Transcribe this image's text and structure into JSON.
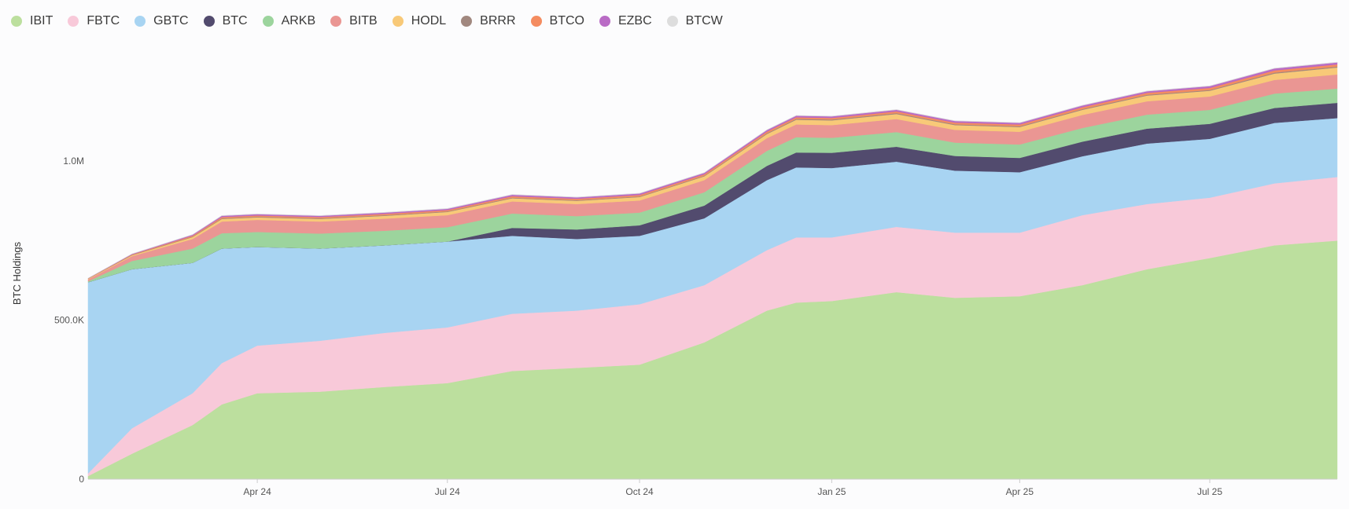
{
  "chart_data": {
    "type": "area",
    "stacked": true,
    "title": "",
    "xlabel": "",
    "ylabel": "BTC Holdings",
    "ylim": [
      0,
      1300000
    ],
    "y_ticks": [
      {
        "value": 0,
        "label": "0"
      },
      {
        "value": 500000,
        "label": "500.0K"
      },
      {
        "value": 1000000,
        "label": "1.0M"
      }
    ],
    "x_ticks": [
      {
        "date": "2024-04-01",
        "label": "Apr 24"
      },
      {
        "date": "2024-07-01",
        "label": "Jul 24"
      },
      {
        "date": "2024-10-01",
        "label": "Oct 24"
      },
      {
        "date": "2025-01-01",
        "label": "Jan 25"
      },
      {
        "date": "2025-04-01",
        "label": "Apr 25"
      },
      {
        "date": "2025-07-01",
        "label": "Jul 25"
      }
    ],
    "x": [
      "2024-01-11",
      "2024-02-01",
      "2024-03-01",
      "2024-03-15",
      "2024-04-01",
      "2024-05-01",
      "2024-06-01",
      "2024-07-01",
      "2024-08-01",
      "2024-09-01",
      "2024-10-01",
      "2024-11-01",
      "2024-12-01",
      "2024-12-15",
      "2025-01-01",
      "2025-02-01",
      "2025-03-01",
      "2025-04-01",
      "2025-05-01",
      "2025-06-01",
      "2025-07-01",
      "2025-08-01",
      "2025-08-31"
    ],
    "legend_position": "top-left",
    "series": [
      {
        "name": "IBIT",
        "color": "#bcdf9e",
        "values": [
          10000,
          80000,
          170000,
          235000,
          270000,
          275000,
          290000,
          302000,
          340000,
          350000,
          360000,
          430000,
          530000,
          555000,
          560000,
          588000,
          570000,
          575000,
          610000,
          660000,
          695000,
          735000,
          750000
        ]
      },
      {
        "name": "FBTC",
        "color": "#f8c9d9",
        "values": [
          8000,
          80000,
          100000,
          130000,
          150000,
          160000,
          170000,
          175000,
          180000,
          180000,
          190000,
          180000,
          190000,
          205000,
          200000,
          205000,
          205000,
          200000,
          220000,
          205000,
          190000,
          195000,
          200000
        ]
      },
      {
        "name": "GBTC",
        "color": "#a8d4f2",
        "values": [
          601000,
          500000,
          410000,
          360000,
          310000,
          290000,
          275000,
          270000,
          245000,
          225000,
          215000,
          210000,
          220000,
          220000,
          218000,
          205000,
          195000,
          190000,
          185000,
          190000,
          185000,
          190000,
          185000
        ]
      },
      {
        "name": "BTC",
        "color": "#524b6e",
        "values": [
          0,
          0,
          0,
          0,
          0,
          0,
          0,
          0,
          25000,
          30000,
          33000,
          40000,
          45000,
          47000,
          48000,
          47000,
          46000,
          45000,
          46000,
          47000,
          47000,
          47000,
          48000
        ]
      },
      {
        "name": "ARKB",
        "color": "#9cd49d",
        "values": [
          3000,
          26000,
          45000,
          48000,
          47000,
          47000,
          46000,
          45000,
          45000,
          42000,
          40000,
          42000,
          47000,
          48000,
          47000,
          46000,
          42000,
          42000,
          43000,
          44000,
          44000,
          45000,
          45000
        ]
      },
      {
        "name": "BITB",
        "color": "#ea9693",
        "values": [
          6000,
          15000,
          30000,
          37000,
          38000,
          38000,
          38000,
          38000,
          38000,
          38000,
          38000,
          38000,
          40000,
          40000,
          40000,
          41000,
          40000,
          40000,
          41000,
          42000,
          42000,
          43000,
          44000
        ]
      },
      {
        "name": "HODL",
        "color": "#f8c978",
        "values": [
          2000,
          3000,
          6000,
          8000,
          8000,
          8000,
          9000,
          10000,
          10000,
          10000,
          11000,
          12000,
          13000,
          15000,
          15000,
          16000,
          15000,
          15000,
          16000,
          18000,
          18000,
          20000,
          22000
        ]
      },
      {
        "name": "BRRR",
        "color": "#a1887f",
        "values": [
          500,
          1000,
          1500,
          2000,
          2000,
          2000,
          2000,
          2000,
          2000,
          2000,
          2000,
          2000,
          2500,
          2500,
          2500,
          2500,
          2500,
          2500,
          2500,
          2500,
          2500,
          3000,
          3000
        ]
      },
      {
        "name": "BTCO",
        "color": "#f48c60",
        "values": [
          500,
          1500,
          3000,
          4000,
          4000,
          4000,
          4000,
          4000,
          4500,
          4500,
          4500,
          4500,
          5000,
          5000,
          5000,
          5500,
          5500,
          5500,
          6000,
          6000,
          6500,
          7000,
          7000
        ]
      },
      {
        "name": "EZBC",
        "color": "#b96bc5",
        "values": [
          500,
          1500,
          3000,
          4000,
          4000,
          4000,
          4000,
          4000,
          4500,
          4500,
          4500,
          4500,
          5000,
          5000,
          5000,
          5000,
          5000,
          5000,
          5000,
          5000,
          5500,
          6000,
          6000
        ]
      },
      {
        "name": "BTCW",
        "color": "#dddddd",
        "values": [
          100,
          300,
          600,
          900,
          1000,
          1000,
          1000,
          1000,
          1000,
          1000,
          1000,
          1000,
          1000,
          1000,
          1000,
          1000,
          1000,
          1000,
          1000,
          1000,
          1000,
          1000,
          1000
        ]
      }
    ]
  }
}
